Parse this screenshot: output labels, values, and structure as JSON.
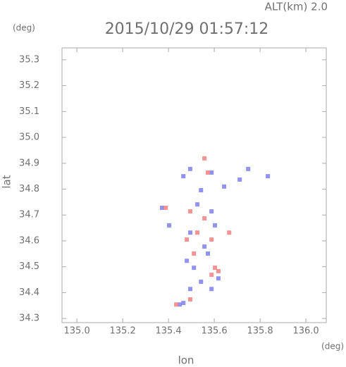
{
  "chart_data": {
    "type": "scatter",
    "title": "2015/10/29 01:57:12",
    "subtitle": "ALT(km) 2.0",
    "y_unit": "(deg)",
    "x_unit": "(deg)",
    "xlabel": "lon",
    "ylabel": "lat",
    "xlim": [
      134.935,
      136.089
    ],
    "ylim": [
      34.284,
      35.346
    ],
    "xticks": [
      {
        "value": 135,
        "label": "135.0"
      },
      135.2,
      135.4,
      135.6,
      135.8,
      {
        "value": 136,
        "label": "136.0"
      }
    ],
    "yticks": [
      34.3,
      34.4,
      34.5,
      34.6,
      34.7,
      34.8,
      34.9,
      {
        "value": 35,
        "label": "35.0"
      },
      35.1,
      35.2,
      35.3
    ],
    "series": [
      {
        "color": "#7f7ff2",
        "x": [
          135.495,
          135.588,
          135.711,
          135.643,
          135.542,
          135.465,
          135.588,
          135.403,
          135.495,
          135.557,
          135.603,
          135.511,
          135.542,
          135.495,
          135.588,
          135.618,
          135.465,
          135.449,
          135.748,
          135.834,
          135.372,
          135.526,
          135.572,
          135.48
        ],
        "y": [
          34.878,
          34.864,
          34.837,
          34.81,
          34.796,
          34.85,
          34.714,
          34.66,
          34.632,
          34.578,
          34.66,
          34.496,
          34.442,
          34.414,
          34.414,
          34.455,
          34.36,
          34.354,
          34.878,
          34.85,
          34.728,
          34.741,
          34.551,
          34.523
        ]
      },
      {
        "color": "#f28080",
        "x": [
          135.557,
          135.572,
          135.495,
          135.557,
          135.48,
          135.588,
          135.511,
          135.603,
          135.588,
          135.618,
          135.495,
          135.434,
          135.388,
          135.526,
          135.665
        ],
        "y": [
          34.919,
          34.864,
          34.714,
          34.687,
          34.605,
          34.605,
          34.551,
          34.496,
          34.469,
          34.483,
          34.374,
          34.354,
          34.728,
          34.632,
          34.632
        ]
      }
    ]
  }
}
